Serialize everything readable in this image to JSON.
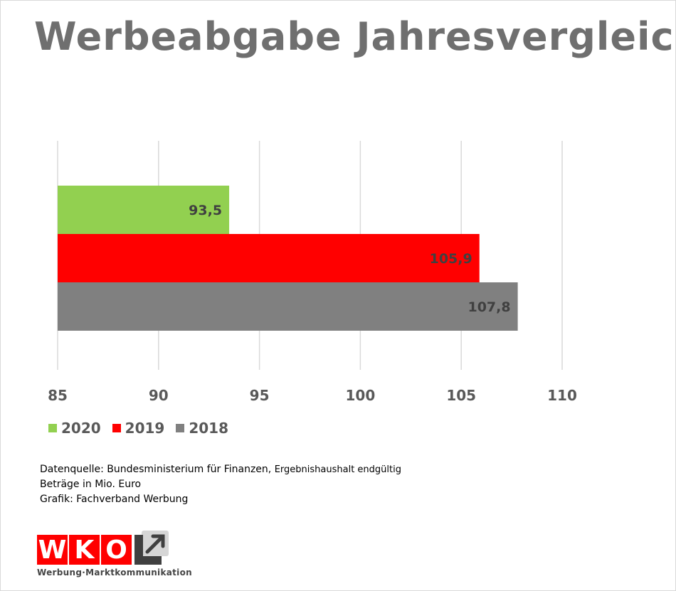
{
  "title": "Werbeabgabe Jahresvergleich",
  "notes": {
    "source_prefix": "Datenquelle: Bundesministerium für Finanzen,",
    "source_suffix": "Ergebnishaushalt endgültig",
    "units": "Beträge in Mio. Euro",
    "credit": "Grafik: Fachverband Werbung"
  },
  "logo": {
    "letters": [
      "W",
      "K",
      "O"
    ],
    "subtitle": "Werbung·Marktkommunikation"
  },
  "chart_data": {
    "type": "bar",
    "orientation": "horizontal",
    "title": "Werbeabgabe Jahresvergleich",
    "xlim": [
      85,
      110
    ],
    "xticks": [
      85,
      90,
      95,
      100,
      105,
      110
    ],
    "xtick_labels": [
      "85",
      "90",
      "95",
      "100",
      "105",
      "110"
    ],
    "grid": "vertical",
    "legend": "bottom-left",
    "series": [
      {
        "name": "2020",
        "value": 93.5,
        "label": "93,5",
        "color": "#92d050"
      },
      {
        "name": "2019",
        "value": 105.9,
        "label": "105,9",
        "color": "#ff0000"
      },
      {
        "name": "2018",
        "value": 107.8,
        "label": "107,8",
        "color": "#808080"
      }
    ]
  }
}
